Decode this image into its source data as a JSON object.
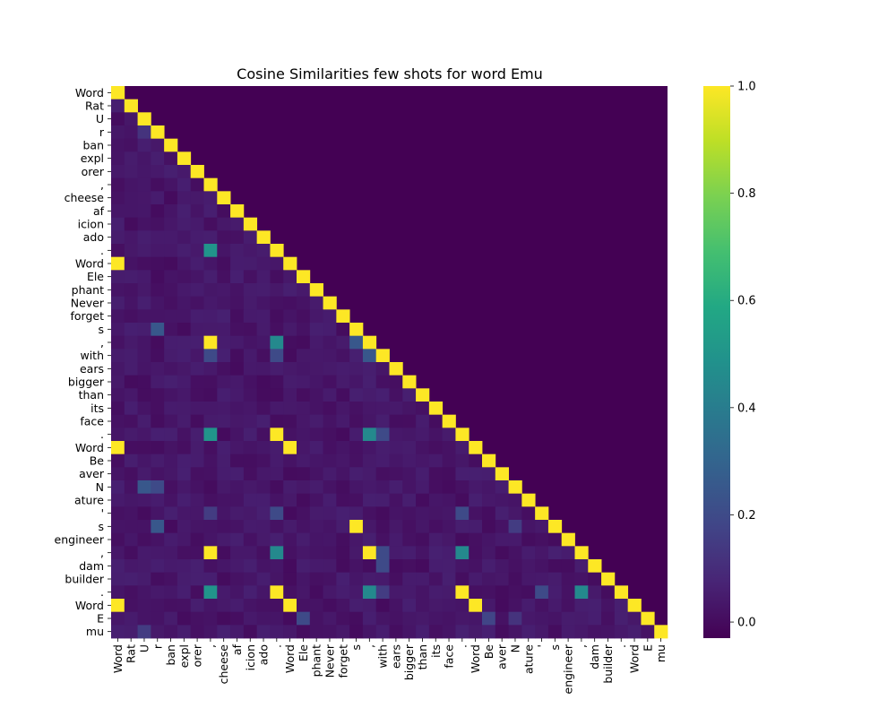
{
  "chart_data": {
    "type": "heatmap",
    "title": "Cosine Similarities few shots for word Emu",
    "tokens": [
      "Word",
      "Rat",
      "U",
      "r",
      "ban",
      "expl",
      "orer",
      ",",
      "cheese",
      "af",
      "icion",
      "ado",
      ".",
      "Word",
      "Ele",
      "phant",
      "Never",
      "forget",
      "s",
      ",",
      "with",
      "ears",
      "bigger",
      "than",
      "its",
      "face",
      ".",
      "Word",
      "Be",
      "aver",
      "N",
      "ature",
      "'",
      "s",
      "engineer",
      ",",
      "dam",
      "builder",
      ".",
      "Word",
      "E",
      "mu"
    ],
    "mask": "upper-triangle-hidden",
    "diagonal_value": 1.0,
    "default_lower_value": 0.03,
    "vmin": -0.03,
    "vmax": 1.0,
    "colormap": "viridis",
    "colorbar_ticks": [
      0.0,
      0.2,
      0.4,
      0.6,
      0.8,
      1.0
    ],
    "colorbar_tick_labels": [
      "0.0",
      "0.2",
      "0.4",
      "0.6",
      "0.8",
      "1.0"
    ],
    "notable_cells": [
      {
        "row": 13,
        "col": 0,
        "value": 1.0
      },
      {
        "row": 27,
        "col": 0,
        "value": 1.0
      },
      {
        "row": 27,
        "col": 13,
        "value": 1.0
      },
      {
        "row": 39,
        "col": 0,
        "value": 1.0
      },
      {
        "row": 39,
        "col": 13,
        "value": 1.0
      },
      {
        "row": 39,
        "col": 27,
        "value": 1.0
      },
      {
        "row": 19,
        "col": 7,
        "value": 1.0
      },
      {
        "row": 35,
        "col": 7,
        "value": 1.0
      },
      {
        "row": 35,
        "col": 19,
        "value": 1.0
      },
      {
        "row": 33,
        "col": 18,
        "value": 1.0
      },
      {
        "row": 26,
        "col": 12,
        "value": 1.0
      },
      {
        "row": 38,
        "col": 12,
        "value": 1.0
      },
      {
        "row": 38,
        "col": 26,
        "value": 1.0
      },
      {
        "row": 12,
        "col": 7,
        "value": 0.5
      },
      {
        "row": 26,
        "col": 7,
        "value": 0.5
      },
      {
        "row": 38,
        "col": 7,
        "value": 0.5
      },
      {
        "row": 19,
        "col": 12,
        "value": 0.45
      },
      {
        "row": 35,
        "col": 12,
        "value": 0.45
      },
      {
        "row": 26,
        "col": 19,
        "value": 0.45
      },
      {
        "row": 38,
        "col": 19,
        "value": 0.45
      },
      {
        "row": 35,
        "col": 26,
        "value": 0.45
      },
      {
        "row": 38,
        "col": 35,
        "value": 0.45
      },
      {
        "row": 20,
        "col": 7,
        "value": 0.2
      },
      {
        "row": 20,
        "col": 12,
        "value": 0.2
      },
      {
        "row": 20,
        "col": 19,
        "value": 0.25
      },
      {
        "row": 19,
        "col": 18,
        "value": 0.25
      },
      {
        "row": 26,
        "col": 20,
        "value": 0.2
      },
      {
        "row": 36,
        "col": 20,
        "value": 0.2
      },
      {
        "row": 38,
        "col": 20,
        "value": 0.15
      },
      {
        "row": 35,
        "col": 20,
        "value": 0.2
      },
      {
        "row": 18,
        "col": 3,
        "value": 0.25
      },
      {
        "row": 33,
        "col": 3,
        "value": 0.25
      },
      {
        "row": 30,
        "col": 2,
        "value": 0.25
      },
      {
        "row": 30,
        "col": 3,
        "value": 0.2
      },
      {
        "row": 3,
        "col": 2,
        "value": 0.12
      },
      {
        "row": 32,
        "col": 7,
        "value": 0.15
      },
      {
        "row": 32,
        "col": 12,
        "value": 0.2
      },
      {
        "row": 32,
        "col": 26,
        "value": 0.2
      },
      {
        "row": 38,
        "col": 32,
        "value": 0.2
      },
      {
        "row": 40,
        "col": 14,
        "value": 0.2
      },
      {
        "row": 40,
        "col": 28,
        "value": 0.18
      },
      {
        "row": 40,
        "col": 30,
        "value": 0.12
      },
      {
        "row": 41,
        "col": 2,
        "value": 0.15
      },
      {
        "row": 30,
        "col": 33,
        "value": 0.15
      },
      {
        "row": 33,
        "col": 30,
        "value": 0.15
      }
    ]
  }
}
